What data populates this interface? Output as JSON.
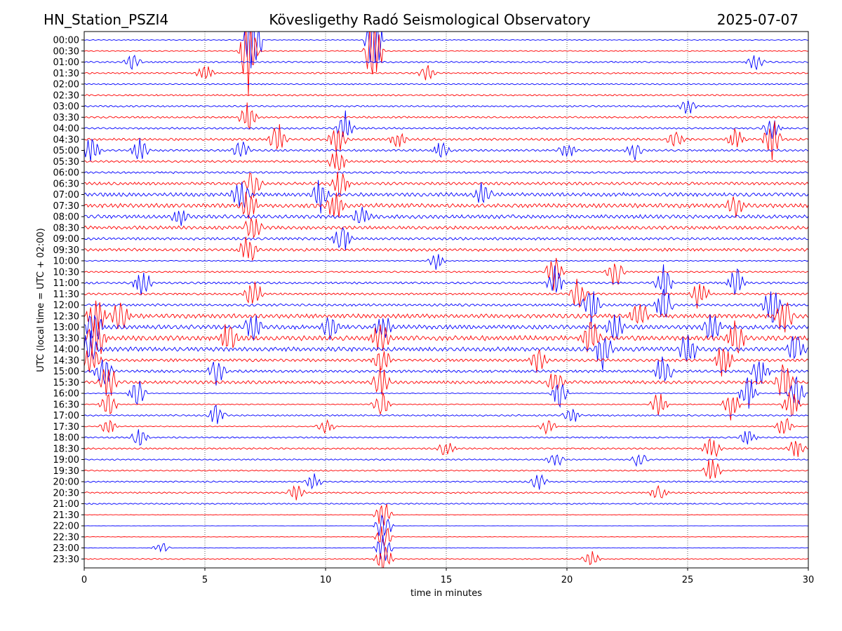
{
  "header": {
    "station": "HN_Station_PSZI4",
    "observatory": "Kövesligethy Radó Seismological Observatory",
    "date": "2025-07-07"
  },
  "chart_data": {
    "type": "line",
    "title": "Kövesligethy Radó Seismological Observatory",
    "xlabel": "time in minutes",
    "ylabel": "UTC (local time = UTC + 02:00)",
    "xlim": [
      0,
      30
    ],
    "xticks": [
      "0",
      "5",
      "10",
      "15",
      "20",
      "25",
      "30"
    ],
    "grid": "vertical dotted",
    "colors": {
      "even_row": "#0000ff",
      "odd_row": "#ff0000",
      "axis": "#000000"
    },
    "rows": [
      {
        "label": "00:00",
        "activity": 0.3,
        "events": [
          [
            7.0,
            8
          ],
          [
            12.0,
            8
          ]
        ]
      },
      {
        "label": "00:30",
        "activity": 0.4,
        "events": [
          [
            6.8,
            8
          ],
          [
            12.0,
            8
          ]
        ]
      },
      {
        "label": "01:00",
        "activity": 0.6,
        "events": [
          [
            2.0,
            1.5
          ],
          [
            27.8,
            1.5
          ]
        ]
      },
      {
        "label": "01:30",
        "activity": 0.6,
        "events": [
          [
            5.0,
            1.5
          ],
          [
            14.2,
            1.5
          ]
        ]
      },
      {
        "label": "02:00",
        "activity": 0.5,
        "events": []
      },
      {
        "label": "02:30",
        "activity": 0.6,
        "events": []
      },
      {
        "label": "03:00",
        "activity": 0.6,
        "events": [
          [
            25.0,
            1.5
          ]
        ]
      },
      {
        "label": "03:30",
        "activity": 0.7,
        "events": [
          [
            6.8,
            3
          ]
        ]
      },
      {
        "label": "04:00",
        "activity": 0.7,
        "events": [
          [
            10.8,
            3
          ],
          [
            28.5,
            2
          ]
        ]
      },
      {
        "label": "04:30",
        "activity": 0.9,
        "events": [
          [
            8.0,
            3
          ],
          [
            10.5,
            3
          ],
          [
            13.0,
            1.5
          ],
          [
            24.5,
            1.5
          ],
          [
            27.0,
            2
          ],
          [
            28.5,
            4
          ]
        ]
      },
      {
        "label": "05:00",
        "activity": 0.8,
        "events": [
          [
            0.3,
            2.5
          ],
          [
            2.3,
            2
          ],
          [
            6.5,
            2
          ],
          [
            14.8,
            1.5
          ],
          [
            20.0,
            1.5
          ],
          [
            22.8,
            1.5
          ]
        ]
      },
      {
        "label": "05:30",
        "activity": 0.8,
        "events": [
          [
            10.5,
            2.5
          ]
        ]
      },
      {
        "label": "06:00",
        "activity": 0.8,
        "events": []
      },
      {
        "label": "06:30",
        "activity": 1.1,
        "events": [
          [
            7.0,
            3
          ],
          [
            10.6,
            2.5
          ]
        ]
      },
      {
        "label": "07:00",
        "activity": 1.4,
        "events": [
          [
            6.5,
            3
          ],
          [
            9.8,
            3
          ],
          [
            16.5,
            2
          ]
        ]
      },
      {
        "label": "07:30",
        "activity": 1.6,
        "events": [
          [
            6.8,
            3
          ],
          [
            10.4,
            3
          ],
          [
            27.0,
            2
          ]
        ]
      },
      {
        "label": "08:00",
        "activity": 1.4,
        "events": [
          [
            4.0,
            1.5
          ],
          [
            11.5,
            2
          ]
        ]
      },
      {
        "label": "08:30",
        "activity": 1.3,
        "events": [
          [
            7.0,
            2.5
          ]
        ]
      },
      {
        "label": "09:00",
        "activity": 1.0,
        "events": [
          [
            10.7,
            3
          ]
        ]
      },
      {
        "label": "09:30",
        "activity": 1.1,
        "events": [
          [
            6.8,
            3
          ]
        ]
      },
      {
        "label": "10:00",
        "activity": 0.4,
        "events": [
          [
            14.6,
            1.5
          ]
        ]
      },
      {
        "label": "10:30",
        "activity": 0.6,
        "events": [
          [
            19.5,
            3.5
          ],
          [
            22.0,
            3
          ]
        ]
      },
      {
        "label": "11:00",
        "activity": 0.8,
        "events": [
          [
            2.4,
            3
          ],
          [
            19.5,
            3
          ],
          [
            24.0,
            3.5
          ],
          [
            27.0,
            3
          ]
        ]
      },
      {
        "label": "11:30",
        "activity": 0.8,
        "events": [
          [
            7.0,
            3
          ],
          [
            20.5,
            3
          ],
          [
            25.5,
            3
          ]
        ]
      },
      {
        "label": "12:00",
        "activity": 0.9,
        "events": [
          [
            21.0,
            3.5
          ],
          [
            24.0,
            3.5
          ],
          [
            28.5,
            4
          ]
        ]
      },
      {
        "label": "12:30",
        "activity": 1.6,
        "events": [
          [
            0.5,
            4
          ],
          [
            1.5,
            3.5
          ],
          [
            23.0,
            3
          ],
          [
            29.0,
            3.5
          ]
        ]
      },
      {
        "label": "13:00",
        "activity": 1.6,
        "events": [
          [
            0.4,
            3.5
          ],
          [
            7.0,
            2.5
          ],
          [
            10.2,
            2.5
          ],
          [
            12.4,
            2.5
          ],
          [
            22.0,
            3
          ],
          [
            26.0,
            3
          ]
        ]
      },
      {
        "label": "13:30",
        "activity": 1.8,
        "events": [
          [
            0.5,
            4
          ],
          [
            6.0,
            3
          ],
          [
            12.3,
            3
          ],
          [
            21.0,
            3.5
          ],
          [
            27.0,
            3.5
          ]
        ]
      },
      {
        "label": "14:00",
        "activity": 1.6,
        "events": [
          [
            0.2,
            3.5
          ],
          [
            21.5,
            3.5
          ],
          [
            25.0,
            3.5
          ],
          [
            29.5,
            3.5
          ]
        ]
      },
      {
        "label": "14:30",
        "activity": 1.1,
        "events": [
          [
            0.3,
            3
          ],
          [
            12.3,
            3
          ],
          [
            18.8,
            2.5
          ],
          [
            26.5,
            3.5
          ]
        ]
      },
      {
        "label": "15:00",
        "activity": 1.0,
        "events": [
          [
            0.8,
            3.5
          ],
          [
            5.5,
            2.5
          ],
          [
            24.0,
            3.5
          ],
          [
            28.0,
            3.5
          ]
        ]
      },
      {
        "label": "15:30",
        "activity": 1.2,
        "events": [
          [
            1.0,
            3.5
          ],
          [
            12.3,
            3
          ],
          [
            19.5,
            2.5
          ],
          [
            29.0,
            3.5
          ]
        ]
      },
      {
        "label": "16:00",
        "activity": 0.3,
        "events": [
          [
            2.2,
            3
          ],
          [
            19.7,
            2.5
          ],
          [
            27.5,
            3.5
          ],
          [
            29.5,
            3.5
          ]
        ]
      },
      {
        "label": "16:30",
        "activity": 0.4,
        "events": [
          [
            1.0,
            2.5
          ],
          [
            12.3,
            3
          ],
          [
            23.8,
            2.5
          ],
          [
            26.8,
            3.5
          ],
          [
            29.3,
            3.5
          ]
        ]
      },
      {
        "label": "17:00",
        "activity": 0.6,
        "events": [
          [
            5.5,
            2
          ],
          [
            20.2,
            1.5
          ]
        ]
      },
      {
        "label": "17:30",
        "activity": 0.4,
        "events": [
          [
            1.0,
            1.5
          ],
          [
            10.0,
            1.5
          ],
          [
            19.2,
            1.5
          ],
          [
            29.0,
            2
          ]
        ]
      },
      {
        "label": "18:00",
        "activity": 0.6,
        "events": [
          [
            2.3,
            2
          ],
          [
            27.5,
            1.5
          ]
        ]
      },
      {
        "label": "18:30",
        "activity": 0.6,
        "events": [
          [
            15.0,
            1.5
          ],
          [
            26.0,
            2.5
          ],
          [
            29.5,
            2
          ]
        ]
      },
      {
        "label": "19:00",
        "activity": 0.5,
        "events": [
          [
            19.5,
            1.5
          ],
          [
            23.0,
            1.5
          ]
        ]
      },
      {
        "label": "19:30",
        "activity": 0.5,
        "events": [
          [
            26.0,
            2.5
          ]
        ]
      },
      {
        "label": "20:00",
        "activity": 0.6,
        "events": [
          [
            9.5,
            1.5
          ],
          [
            18.8,
            1.5
          ]
        ]
      },
      {
        "label": "20:30",
        "activity": 0.6,
        "events": [
          [
            8.8,
            1.5
          ],
          [
            23.8,
            1.5
          ]
        ]
      },
      {
        "label": "21:00",
        "activity": 0.5,
        "events": []
      },
      {
        "label": "21:30",
        "activity": 0.15,
        "events": [
          [
            12.4,
            3
          ]
        ]
      },
      {
        "label": "22:00",
        "activity": 0.1,
        "events": [
          [
            12.4,
            3
          ]
        ]
      },
      {
        "label": "22:30",
        "activity": 0.15,
        "events": [
          [
            12.4,
            3
          ]
        ]
      },
      {
        "label": "23:00",
        "activity": 0.2,
        "events": [
          [
            3.2,
            1
          ],
          [
            12.4,
            3
          ]
        ]
      },
      {
        "label": "23:30",
        "activity": 0.4,
        "events": [
          [
            12.4,
            3
          ],
          [
            21.0,
            1.5
          ]
        ]
      }
    ]
  }
}
